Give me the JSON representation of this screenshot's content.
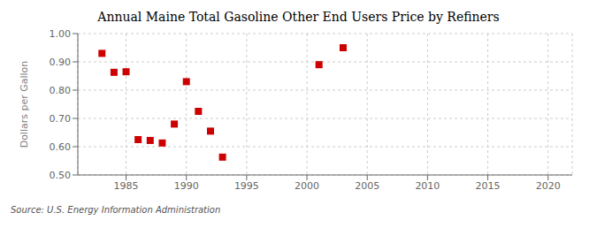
{
  "chart_data": {
    "type": "scatter",
    "title": "Annual Maine Total Gasoline Other End Users Price by Refiners",
    "ylabel": "Dollars per Gallon",
    "annotation": "Source: U.S. Energy Information Administration",
    "x": [
      1983,
      1984,
      1985,
      1986,
      1987,
      1988,
      1989,
      1990,
      1991,
      1992,
      1993,
      2001,
      2003
    ],
    "values": [
      0.93,
      0.863,
      0.865,
      0.625,
      0.622,
      0.613,
      0.68,
      0.83,
      0.725,
      0.655,
      0.563,
      0.89,
      0.95
    ],
    "color": "#cc0000",
    "marker": "square",
    "xlim": [
      1981,
      2022
    ],
    "ylim": [
      0.5,
      1.0
    ],
    "xticks": [
      1985,
      1990,
      1995,
      2000,
      2005,
      2010,
      2015,
      2020
    ],
    "yticks": [
      {
        "value": 0.5,
        "label": "0.50"
      },
      {
        "value": 0.6,
        "label": "0.60"
      },
      {
        "value": 0.7,
        "label": "0.70"
      },
      {
        "value": 0.8,
        "label": "0.80"
      },
      {
        "value": 0.9,
        "label": "0.90"
      },
      {
        "value": 1.0,
        "label": "1.00"
      }
    ],
    "grid": true
  }
}
